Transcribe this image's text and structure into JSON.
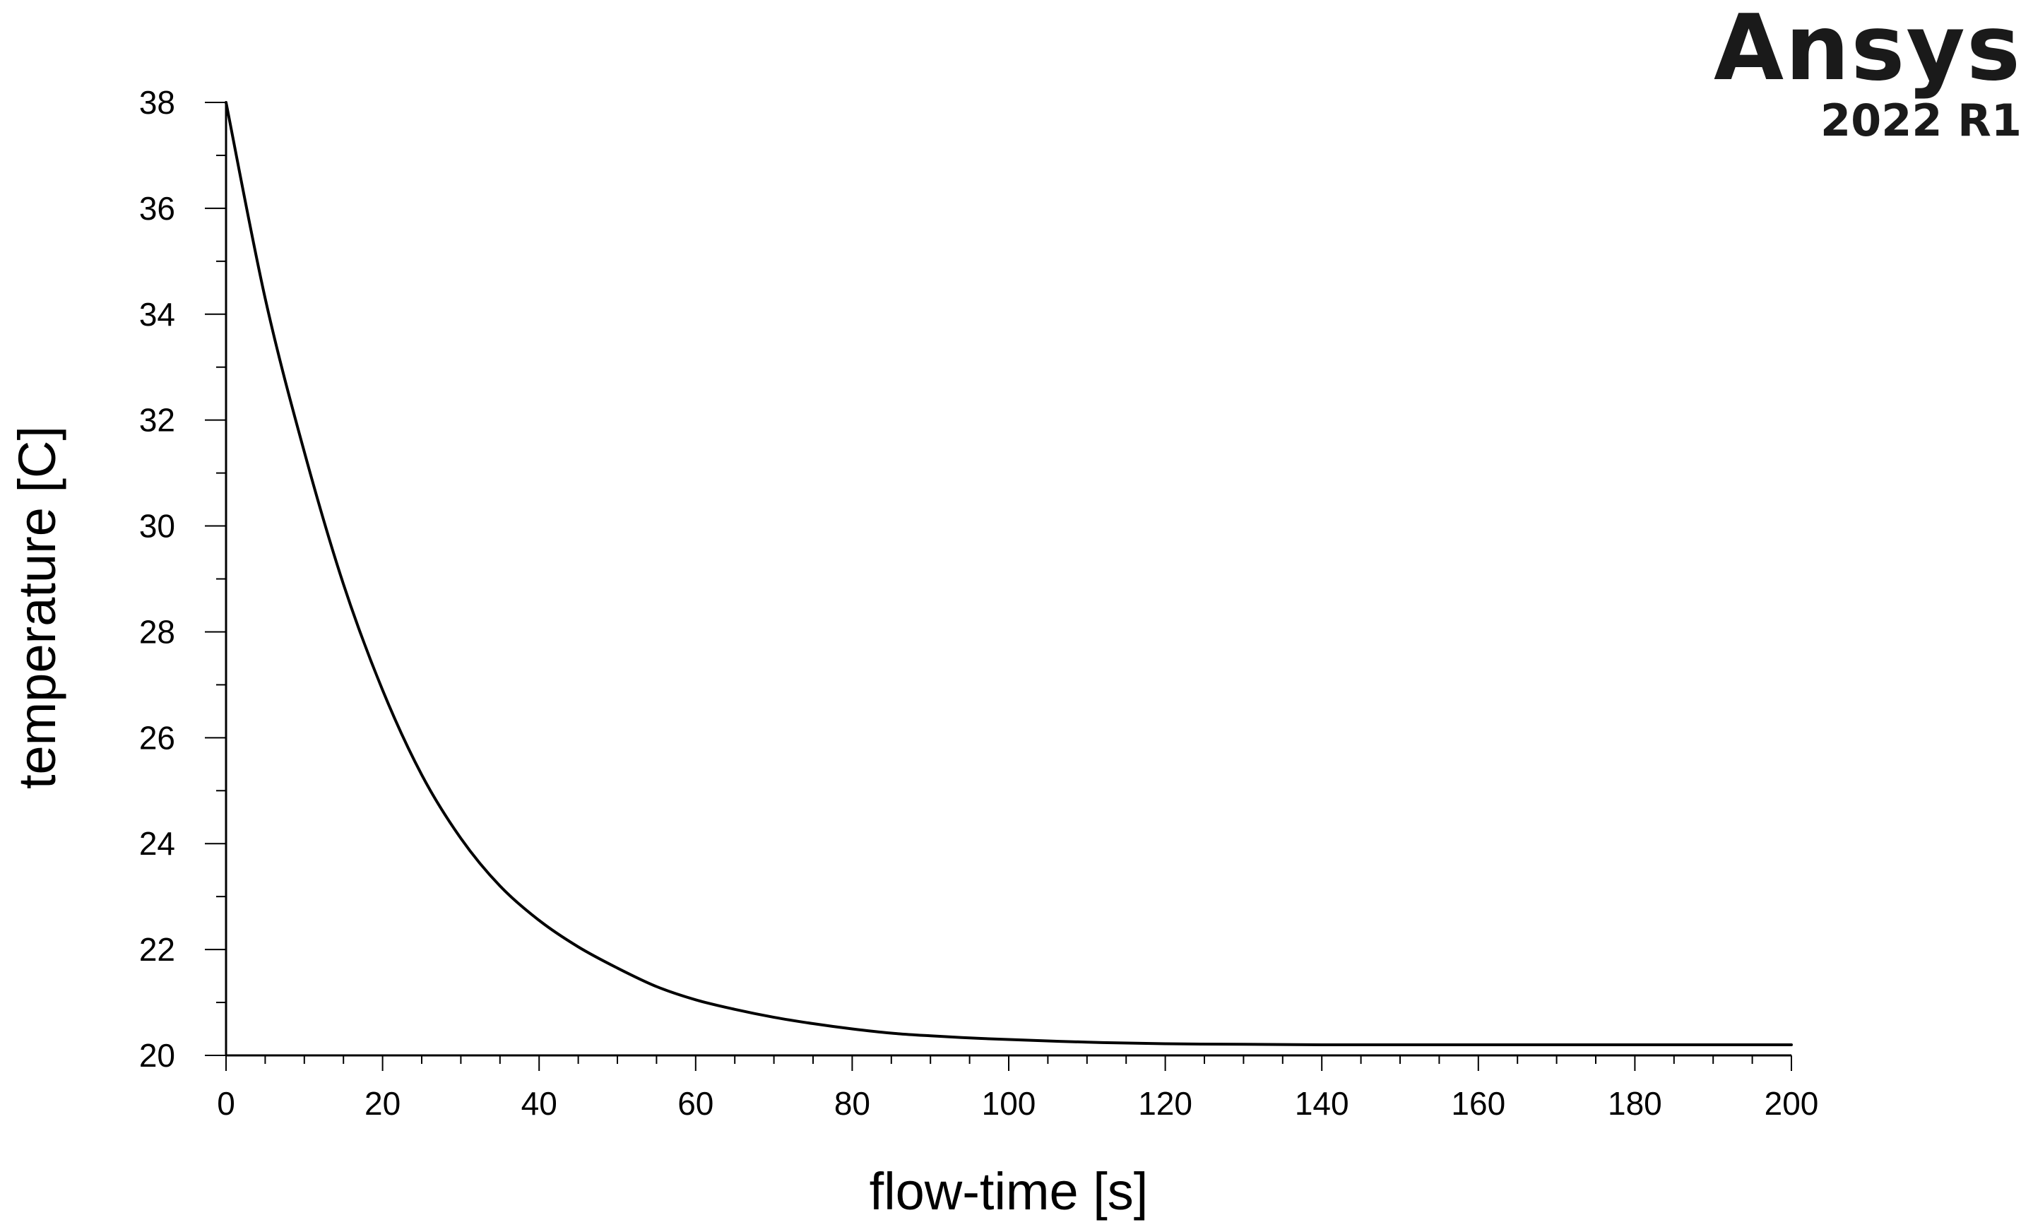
{
  "logo": {
    "brand": "Ansys",
    "version": "2022 R1"
  },
  "colors": {
    "line": "#000000",
    "axis": "#000000",
    "logo": "#1a1a1a",
    "background": "#ffffff"
  },
  "chart_data": {
    "type": "line",
    "title": "",
    "xlabel": "flow-time [s]",
    "ylabel": "temperature  [C]",
    "xlim": [
      0,
      200
    ],
    "ylim": [
      20,
      38
    ],
    "xticks": [
      0,
      20,
      40,
      60,
      80,
      100,
      120,
      140,
      160,
      180,
      200
    ],
    "yticks": [
      20,
      22,
      24,
      26,
      28,
      30,
      32,
      34,
      36,
      38
    ],
    "x_minor_step": 5,
    "y_minor_step": 1,
    "grid": false,
    "legend": "none",
    "series": [
      {
        "x": [
          0,
          5,
          10,
          15,
          20,
          25,
          30,
          35,
          40,
          45,
          50,
          55,
          60,
          65,
          70,
          75,
          80,
          85,
          90,
          95,
          100,
          110,
          120,
          130,
          140,
          150,
          160,
          170,
          180,
          190,
          200
        ],
        "y": [
          38.0,
          34.3,
          31.4,
          28.9,
          26.9,
          25.3,
          24.1,
          23.2,
          22.55,
          22.05,
          21.65,
          21.3,
          21.05,
          20.87,
          20.72,
          20.6,
          20.5,
          20.42,
          20.37,
          20.33,
          20.3,
          20.25,
          20.22,
          20.21,
          20.2,
          20.2,
          20.2,
          20.2,
          20.2,
          20.2,
          20.2
        ]
      }
    ]
  }
}
